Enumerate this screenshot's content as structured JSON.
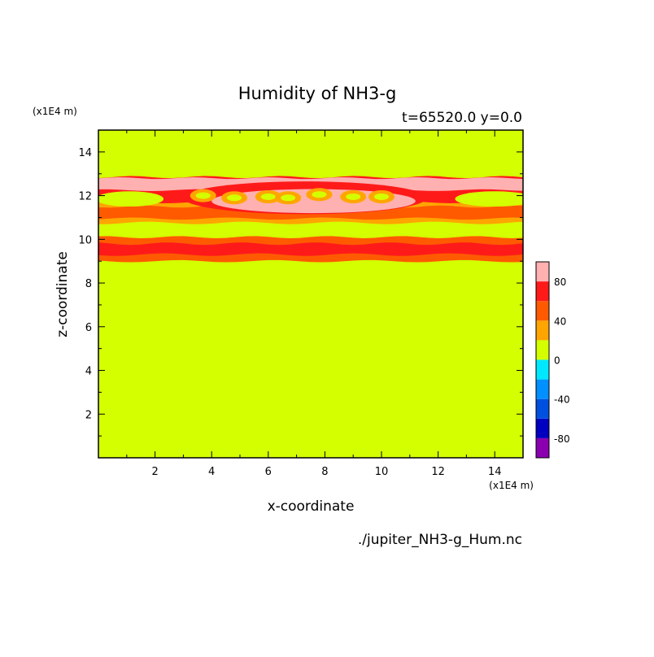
{
  "chart_data": {
    "type": "heatmap",
    "title": "Humidity of NH3-g",
    "subtitle": "t=65520.0 y=0.0",
    "xlabel": "x-coordinate",
    "ylabel": "z-coordinate",
    "x_unit": "(x1E4 m)",
    "z_unit": "(x1E4 m)",
    "file_label": "./jupiter_NH3-g_Hum.nc",
    "xlim": [
      0,
      15
    ],
    "ylim": [
      0,
      15
    ],
    "x_ticks": [
      2,
      4,
      6,
      8,
      10,
      12,
      14
    ],
    "y_ticks": [
      2,
      4,
      6,
      8,
      10,
      12,
      14
    ],
    "background_level_color": "#d4ff00",
    "colorbar": {
      "levels": [
        -100,
        -80,
        -60,
        -40,
        -20,
        0,
        20,
        40,
        60,
        80,
        100
      ],
      "colors": [
        "#8a00b0",
        "#0000c0",
        "#0050e0",
        "#0090ff",
        "#00e8ff",
        "#d4ff00",
        "#ffa500",
        "#ff5a00",
        "#ff1a1a",
        "#ffb0b0"
      ],
      "tick_labels": [
        "80",
        "40",
        "0",
        "-40",
        "-80"
      ],
      "tick_values": [
        80,
        40,
        0,
        -40,
        -80
      ]
    },
    "bands": [
      {
        "level_index": 8,
        "z": [
          9.0,
          10.1
        ],
        "note": "red-orange cloud base layer"
      },
      {
        "level_index": 7,
        "z": [
          10.8,
          11.7
        ]
      },
      {
        "level_index": 8,
        "z": [
          11.2,
          12.7
        ]
      },
      {
        "level_index": 9,
        "z": [
          12.2,
          12.8
        ]
      }
    ],
    "blobs": [
      {
        "x": 3.7,
        "z": 12.0
      },
      {
        "x": 4.8,
        "z": 11.9
      },
      {
        "x": 6.0,
        "z": 11.95
      },
      {
        "x": 6.7,
        "z": 11.9
      },
      {
        "x": 7.8,
        "z": 12.05
      },
      {
        "x": 9.0,
        "z": 11.95
      },
      {
        "x": 10.0,
        "z": 11.95
      }
    ]
  }
}
